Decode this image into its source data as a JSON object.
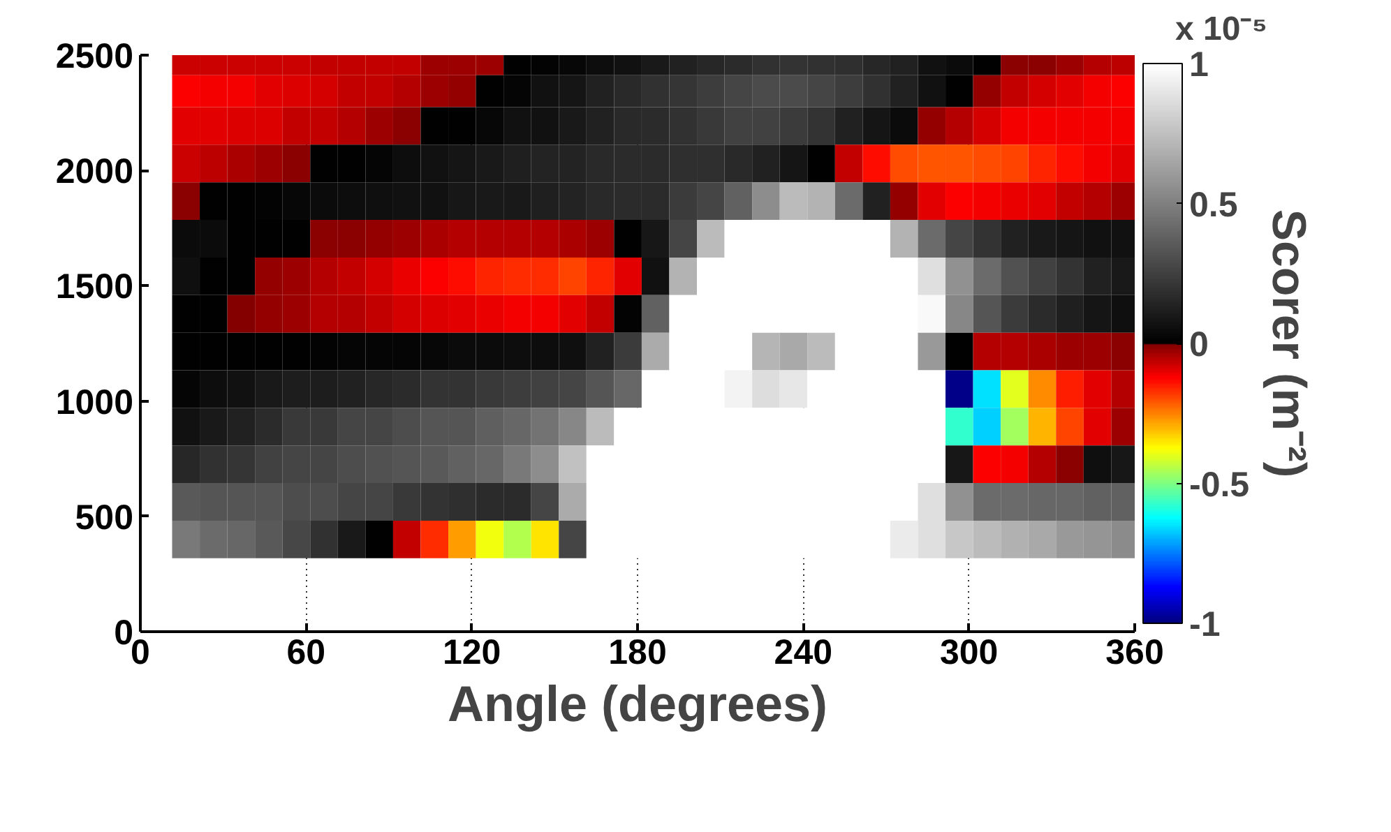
{
  "chart_data": {
    "type": "heatmap",
    "xlabel": "Angle (degrees)",
    "clabel": "Scorer (m⁻²)",
    "annotations": [
      "x 10⁻⁵"
    ],
    "x": [
      16.5,
      26.5,
      36.5,
      46.5,
      56.5,
      66.5,
      76.5,
      86.5,
      96.5,
      106.5,
      116.5,
      126.5,
      136.5,
      146.5,
      156.5,
      166.5,
      176.5,
      186.5,
      196.5,
      206.5,
      216.5,
      226.5,
      236.5,
      246.5,
      256.5,
      266.5,
      276.5,
      286.5,
      296.5,
      306.5,
      316.5,
      326.5,
      336.5,
      346.5,
      356.5
    ],
    "y": [
      2470,
      2356,
      2193,
      2030,
      1867,
      1704,
      1541,
      1378,
      1215,
      1052,
      889,
      726,
      563,
      400
    ],
    "cells": [
      [
        -0.075,
        -0.075,
        -0.075,
        -0.075,
        -0.075,
        -0.063,
        -0.063,
        -0.063,
        -0.063,
        -0.03,
        -0.03,
        -0.03,
        0.0,
        0.01,
        0.03,
        0.05,
        0.07,
        0.1,
        0.13,
        0.15,
        0.17,
        0.19,
        0.2,
        0.19,
        0.18,
        0.15,
        0.13,
        0.07,
        0.04,
        0.0,
        -0.01,
        -0.01,
        -0.03,
        -0.05,
        -0.06
      ],
      [
        -0.125,
        -0.11,
        -0.11,
        -0.1,
        -0.09,
        -0.08,
        -0.07,
        -0.065,
        -0.05,
        -0.03,
        -0.02,
        0.0,
        0.02,
        0.07,
        0.08,
        0.13,
        0.16,
        0.19,
        0.21,
        0.24,
        0.27,
        0.29,
        0.29,
        0.27,
        0.24,
        0.19,
        0.13,
        0.07,
        0.0,
        -0.02,
        -0.065,
        -0.08,
        -0.1,
        -0.11,
        -0.125
      ],
      [
        -0.1,
        -0.1,
        -0.09,
        -0.09,
        -0.065,
        -0.065,
        -0.05,
        -0.03,
        -0.01,
        0.0,
        0.0,
        0.03,
        0.07,
        0.07,
        0.1,
        0.13,
        0.16,
        0.17,
        0.19,
        0.22,
        0.25,
        0.25,
        0.23,
        0.2,
        0.13,
        0.08,
        0.04,
        -0.02,
        -0.05,
        -0.08,
        -0.11,
        -0.11,
        -0.11,
        -0.11,
        -0.11
      ],
      [
        -0.075,
        -0.055,
        -0.04,
        -0.03,
        -0.01,
        0.0,
        0.0,
        0.02,
        0.05,
        0.07,
        0.08,
        0.1,
        0.12,
        0.14,
        0.14,
        0.16,
        0.17,
        0.17,
        0.18,
        0.18,
        0.16,
        0.13,
        0.08,
        0.0,
        -0.065,
        -0.14,
        -0.2,
        -0.21,
        -0.21,
        -0.2,
        -0.19,
        -0.16,
        -0.14,
        -0.11,
        -0.1
      ],
      [
        -0.01,
        0.0,
        0.0,
        0.01,
        0.03,
        0.04,
        0.05,
        0.06,
        0.07,
        0.07,
        0.09,
        0.1,
        0.1,
        0.12,
        0.14,
        0.16,
        0.17,
        0.17,
        0.23,
        0.27,
        0.38,
        0.55,
        0.73,
        0.7,
        0.42,
        0.13,
        -0.02,
        -0.1,
        -0.125,
        -0.11,
        -0.105,
        -0.1,
        -0.065,
        -0.05,
        -0.025
      ],
      [
        0.04,
        0.04,
        0.0,
        0.0,
        0.0,
        -0.01,
        -0.01,
        -0.02,
        -0.03,
        -0.04,
        -0.05,
        -0.05,
        -0.05,
        -0.05,
        -0.04,
        -0.025,
        0.0,
        0.09,
        0.27,
        0.73,
        1,
        1,
        1,
        1,
        1,
        1,
        0.7,
        0.42,
        0.27,
        0.2,
        0.13,
        0.1,
        0.08,
        0.07,
        0.07
      ],
      [
        0.06,
        0.0,
        0.0,
        -0.02,
        -0.03,
        -0.05,
        -0.065,
        -0.08,
        -0.105,
        -0.125,
        -0.14,
        -0.16,
        -0.17,
        -0.17,
        -0.19,
        -0.16,
        -0.1,
        0.07,
        0.7,
        1,
        1,
        1,
        1,
        1,
        1,
        1,
        1,
        0.87,
        0.57,
        0.42,
        0.32,
        0.25,
        0.2,
        0.13,
        0.1
      ],
      [
        0.0,
        0.0,
        -0.005,
        -0.02,
        -0.03,
        -0.05,
        -0.05,
        -0.07,
        -0.08,
        -0.09,
        -0.1,
        -0.105,
        -0.11,
        -0.11,
        -0.1,
        -0.065,
        0.01,
        0.38,
        1,
        1,
        1,
        1,
        1,
        1,
        1,
        1,
        1,
        0.97,
        0.53,
        0.33,
        0.23,
        0.17,
        0.12,
        0.08,
        0.06
      ],
      [
        0,
        0,
        0,
        0,
        0,
        0.01,
        0.02,
        0.02,
        0.02,
        0.03,
        0.04,
        0.04,
        0.05,
        0.05,
        0.06,
        0.13,
        0.23,
        0.67,
        1,
        1,
        1,
        0.71,
        0.66,
        0.73,
        1,
        1,
        1,
        0.6,
        0.0,
        -0.05,
        -0.05,
        -0.04,
        -0.025,
        -0.025,
        -0.01
      ],
      [
        0.02,
        0.05,
        0.07,
        0.1,
        0.11,
        0.11,
        0.13,
        0.15,
        0.17,
        0.2,
        0.2,
        0.22,
        0.24,
        0.25,
        0.27,
        0.33,
        0.4,
        1,
        1,
        1,
        0.95,
        0.86,
        0.9,
        1,
        1,
        1,
        1,
        1,
        -0.99,
        -0.655,
        -0.405,
        -0.258,
        -0.155,
        -0.1,
        -0.05
      ],
      [
        0.07,
        0.1,
        0.13,
        0.17,
        0.22,
        0.22,
        0.27,
        0.27,
        0.3,
        0.33,
        0.33,
        0.37,
        0.4,
        0.45,
        0.53,
        0.73,
        1,
        1,
        1,
        1,
        1,
        1,
        1,
        1,
        1,
        1,
        1,
        1,
        -0.578,
        -0.671,
        -0.468,
        -0.298,
        -0.188,
        -0.1,
        -0.03
      ],
      [
        0.15,
        0.19,
        0.21,
        0.25,
        0.27,
        0.27,
        0.3,
        0.32,
        0.33,
        0.35,
        0.38,
        0.4,
        0.47,
        0.55,
        0.75,
        1,
        1,
        1,
        1,
        1,
        1,
        1,
        1,
        1,
        1,
        1,
        1,
        1,
        0.09,
        -0.125,
        -0.11,
        -0.05,
        -0.01,
        0.06,
        0.09
      ],
      [
        0.35,
        0.33,
        0.33,
        0.33,
        0.3,
        0.3,
        0.27,
        0.27,
        0.22,
        0.2,
        0.18,
        0.17,
        0.17,
        0.27,
        0.67,
        1,
        1,
        1,
        1,
        1,
        1,
        1,
        1,
        1,
        1,
        1,
        1,
        0.87,
        0.57,
        0.42,
        0.42,
        0.4,
        0.4,
        0.38,
        0.38
      ],
      [
        0.47,
        0.42,
        0.4,
        0.35,
        0.28,
        0.19,
        0.1,
        0.0,
        -0.065,
        -0.17,
        -0.28,
        -0.39,
        -0.452,
        -0.345,
        0.27,
        1,
        1,
        1,
        1,
        1,
        1,
        1,
        1,
        1,
        1,
        1,
        0.92,
        0.87,
        0.78,
        0.73,
        0.69,
        0.66,
        0.6,
        0.58,
        0.54
      ]
    ],
    "clim": [
      -1,
      1
    ],
    "cticks": [
      -1,
      -0.5,
      0,
      0.5,
      1
    ],
    "xlim": [
      0,
      360
    ],
    "ylim": [
      0,
      2500
    ],
    "xticks": [
      0,
      60,
      120,
      180,
      240,
      300,
      360
    ],
    "yticks": [
      0,
      500,
      1000,
      1500,
      2000,
      2500
    ],
    "grid": "x"
  }
}
